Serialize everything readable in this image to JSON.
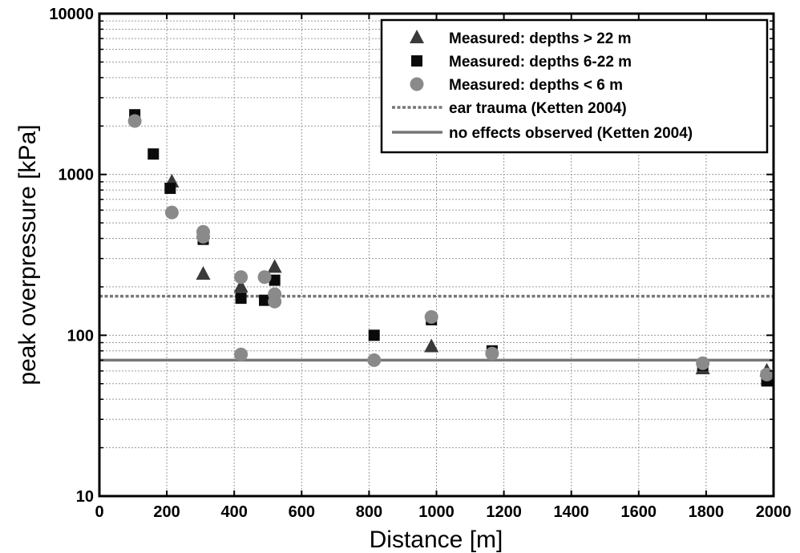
{
  "chart_data": {
    "type": "scatter",
    "xlabel": "Distance [m]",
    "ylabel": "peak overpressure [kPa]",
    "xlim": [
      0,
      2000
    ],
    "ylim": [
      10,
      10000
    ],
    "yscale": "log",
    "grid": true,
    "legend_position": "top-right",
    "x_ticks": [
      "0",
      "200",
      "400",
      "600",
      "800",
      "1000",
      "1200",
      "1400",
      "1600",
      "1800",
      "2000"
    ],
    "y_ticks": [
      "10",
      "100",
      "1000",
      "10000"
    ],
    "series": [
      {
        "name": "Measured: depths > 22 m",
        "marker": "triangle",
        "color": "#3a3a3a",
        "points": [
          [
            215,
            900
          ],
          [
            308,
            240
          ],
          [
            420,
            200
          ],
          [
            520,
            265
          ],
          [
            985,
            85
          ],
          [
            1790,
            62
          ],
          [
            1980,
            60
          ]
        ]
      },
      {
        "name": "Measured: depths 6-22 m",
        "marker": "square",
        "color": "#0a0a0a",
        "points": [
          [
            105,
            2350
          ],
          [
            160,
            1340
          ],
          [
            210,
            820
          ],
          [
            308,
            395
          ],
          [
            420,
            170
          ],
          [
            490,
            165
          ],
          [
            520,
            220
          ],
          [
            815,
            100
          ],
          [
            985,
            125
          ],
          [
            1165,
            80
          ],
          [
            1790,
            65
          ],
          [
            1980,
            52
          ]
        ]
      },
      {
        "name": "Measured: depths < 6 m",
        "marker": "circle",
        "color": "#8a8a8a",
        "points": [
          [
            105,
            2150
          ],
          [
            215,
            580
          ],
          [
            308,
            440
          ],
          [
            308,
            410
          ],
          [
            420,
            230
          ],
          [
            420,
            76
          ],
          [
            490,
            230
          ],
          [
            520,
            162
          ],
          [
            520,
            180
          ],
          [
            815,
            70
          ],
          [
            985,
            130
          ],
          [
            1165,
            77
          ],
          [
            1790,
            67
          ],
          [
            1980,
            57
          ]
        ]
      }
    ],
    "reference_lines": [
      {
        "name": "ear trauma (Ketten 2004)",
        "y": 175,
        "style": "dotted",
        "color": "#777777"
      },
      {
        "name": "no effects observed (Ketten 2004)",
        "y": 70,
        "style": "solid",
        "color": "#777777"
      }
    ]
  }
}
